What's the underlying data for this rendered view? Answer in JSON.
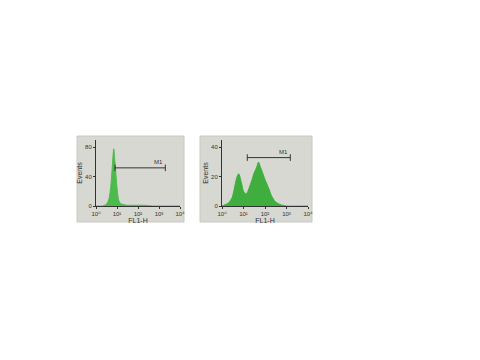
{
  "chart_data": [
    {
      "type": "area",
      "log": "x",
      "color": "#4cbb4c",
      "x_label": "FL1-H",
      "y_label": "Events",
      "x": [
        1,
        2,
        3,
        4,
        5,
        6,
        7,
        8,
        10,
        12,
        15,
        20,
        30,
        50,
        100,
        200,
        500,
        1000,
        10000
      ],
      "values": [
        0,
        0,
        2,
        8,
        25,
        55,
        78,
        60,
        25,
        8,
        3,
        2,
        1,
        1,
        1,
        1,
        0,
        0,
        0
      ],
      "xlim": [
        1,
        10000
      ],
      "xticks": [
        {
          "value": 1,
          "label": "10⁰"
        },
        {
          "value": 10,
          "label": "10¹"
        },
        {
          "value": 100,
          "label": "10²"
        },
        {
          "value": 1000,
          "label": "10³"
        },
        {
          "value": 10000,
          "label": "10⁴"
        }
      ],
      "ylim": [
        0,
        90
      ],
      "yticks": [
        0,
        40,
        80
      ],
      "gate": {
        "label": "M1",
        "range": [
          8,
          2000
        ],
        "y": 52
      }
    },
    {
      "type": "area",
      "log": "x",
      "color": "#3fae3f",
      "x_label": "FL1-H",
      "y_label": "Events",
      "x": [
        1,
        2,
        3,
        4,
        5,
        6,
        8,
        10,
        13,
        16,
        20,
        25,
        30,
        40,
        50,
        60,
        80,
        100,
        150,
        200,
        300,
        500,
        1000,
        10000
      ],
      "values": [
        0,
        2,
        6,
        14,
        20,
        22,
        16,
        10,
        8,
        10,
        14,
        18,
        22,
        26,
        30,
        27,
        22,
        18,
        12,
        7,
        3,
        1,
        0,
        0
      ],
      "xlim": [
        1,
        10000
      ],
      "xticks": [
        {
          "value": 1,
          "label": "10⁰"
        },
        {
          "value": 10,
          "label": "10¹"
        },
        {
          "value": 100,
          "label": "10²"
        },
        {
          "value": 1000,
          "label": "10³"
        },
        {
          "value": 10000,
          "label": "10⁴"
        }
      ],
      "ylim": [
        0,
        45
      ],
      "yticks": [
        0,
        20,
        40
      ],
      "gate": {
        "label": "M1",
        "range": [
          15,
          1500
        ],
        "y": 33
      }
    }
  ]
}
